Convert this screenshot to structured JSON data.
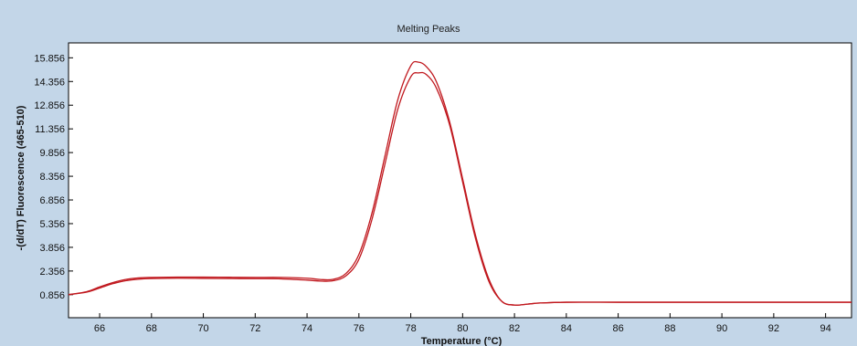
{
  "chart_data": {
    "type": "line",
    "title": "Melting Peaks",
    "xlabel": "Temperature (°C)",
    "ylabel": "-(d/dT) Fluorescence (465-510)",
    "xlim": [
      64.8,
      95
    ],
    "ylim": [
      -0.6,
      16.8
    ],
    "x_ticks": [
      "66",
      "68",
      "70",
      "72",
      "74",
      "76",
      "78",
      "80",
      "82",
      "84",
      "86",
      "88",
      "90",
      "92",
      "94"
    ],
    "y_ticks": [
      "0.856",
      "2.356",
      "3.856",
      "5.356",
      "6.856",
      "8.356",
      "9.856",
      "11.356",
      "12.856",
      "14.356",
      "15.856"
    ],
    "grid": false,
    "legend": "none",
    "colors": {
      "background": "#c3d6e8",
      "plot_area": "#ffffff",
      "line": "#c0181e"
    },
    "series": [
      {
        "x": [
          64.8,
          65.5,
          66.0,
          66.5,
          67.0,
          67.5,
          68.0,
          69.0,
          70.0,
          71.0,
          72.0,
          73.0,
          74.0,
          74.5,
          75.0,
          75.5,
          76.0,
          76.5,
          77.0,
          77.5,
          78.0,
          78.3,
          78.6,
          79.0,
          79.5,
          80.0,
          80.5,
          81.0,
          81.5,
          82.0,
          82.5,
          83.0,
          84.0,
          86.0,
          88.0,
          90.0,
          92.0,
          94.0,
          95.0
        ],
        "y": [
          0.86,
          1.05,
          1.35,
          1.62,
          1.82,
          1.92,
          1.95,
          1.97,
          1.97,
          1.96,
          1.95,
          1.95,
          1.9,
          1.82,
          1.83,
          2.2,
          3.4,
          6.0,
          9.6,
          13.2,
          15.35,
          15.58,
          15.3,
          14.3,
          11.8,
          8.2,
          4.6,
          1.9,
          0.45,
          0.2,
          0.26,
          0.33,
          0.38,
          0.38,
          0.38,
          0.38,
          0.38,
          0.38,
          0.38
        ]
      },
      {
        "x": [
          64.8,
          65.5,
          66.0,
          66.5,
          67.0,
          67.5,
          68.0,
          69.0,
          70.0,
          71.0,
          72.0,
          73.0,
          74.0,
          74.5,
          75.0,
          75.5,
          76.0,
          76.5,
          77.0,
          77.5,
          78.0,
          78.3,
          78.6,
          79.0,
          79.5,
          80.0,
          80.5,
          81.0,
          81.5,
          82.0,
          82.5,
          83.0,
          84.0,
          86.0,
          88.0,
          90.0,
          92.0,
          94.0,
          95.0
        ],
        "y": [
          0.86,
          1.02,
          1.28,
          1.55,
          1.74,
          1.84,
          1.88,
          1.9,
          1.89,
          1.88,
          1.87,
          1.86,
          1.78,
          1.72,
          1.74,
          2.05,
          3.1,
          5.6,
          9.1,
          12.6,
          14.65,
          14.9,
          14.8,
          13.9,
          11.6,
          8.0,
          4.4,
          1.75,
          0.45,
          0.2,
          0.26,
          0.33,
          0.38,
          0.38,
          0.38,
          0.38,
          0.38,
          0.38,
          0.38
        ]
      }
    ]
  }
}
